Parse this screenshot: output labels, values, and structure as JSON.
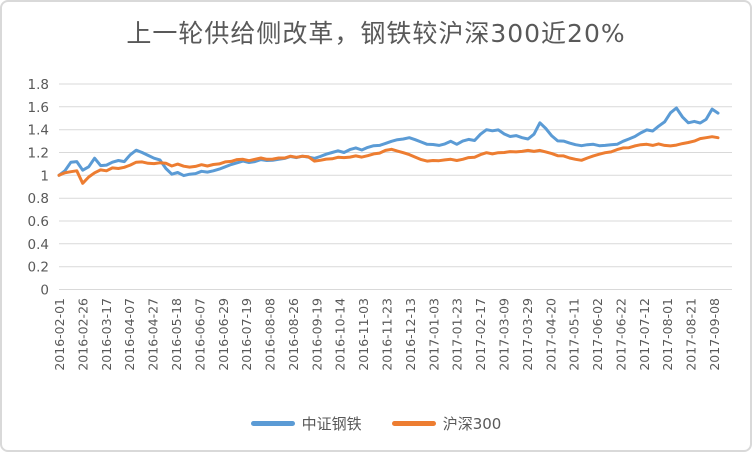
{
  "chart_data": {
    "type": "line",
    "title": "上一轮供给侧改革，钢铁较沪深300近20%",
    "xlabel": "",
    "ylabel": "",
    "ylim": [
      0,
      1.8
    ],
    "grid": true,
    "legend_position": "bottom",
    "colors": {
      "series_steel": "#5B9BD5",
      "series_hs300": "#ED7D31",
      "gridline": "#D9D9D9",
      "text": "#595959",
      "card_border": "#D9D9D9"
    },
    "y_ticks": [
      "1.8",
      "1.6",
      "1.4",
      "1.2",
      "1",
      "0.8",
      "0.6",
      "0.4",
      "0.2",
      "0"
    ],
    "x_tick_labels": [
      "2016-02-01",
      "2016-02-26",
      "2016-03-17",
      "2016-04-07",
      "2016-04-27",
      "2016-05-18",
      "2016-06-07",
      "2016-06-29",
      "2016-07-19",
      "2016-08-08",
      "2016-08-26",
      "2016-09-19",
      "2016-10-14",
      "2016-11-03",
      "2016-11-23",
      "2016-12-13",
      "2017-01-03",
      "2017-01-23",
      "2017-02-17",
      "2017-03-09",
      "2017-03-29",
      "2017-04-20",
      "2017-05-11",
      "2017-06-02",
      "2017-06-22",
      "2017-07-12",
      "2017-08-01",
      "2017-08-21",
      "2017-09-08"
    ],
    "series": [
      {
        "name": "中证钢铁",
        "color": "#5B9BD5",
        "values": [
          1.0,
          1.04,
          1.115,
          1.12,
          1.045,
          1.075,
          1.15,
          1.085,
          1.09,
          1.115,
          1.13,
          1.12,
          1.18,
          1.22,
          1.2,
          1.175,
          1.15,
          1.135,
          1.06,
          1.01,
          1.025,
          0.998,
          1.01,
          1.015,
          1.035,
          1.028,
          1.04,
          1.055,
          1.075,
          1.095,
          1.11,
          1.125,
          1.112,
          1.12,
          1.138,
          1.13,
          1.132,
          1.14,
          1.148,
          1.165,
          1.155,
          1.168,
          1.16,
          1.148,
          1.165,
          1.185,
          1.2,
          1.215,
          1.2,
          1.225,
          1.24,
          1.222,
          1.245,
          1.26,
          1.262,
          1.28,
          1.298,
          1.312,
          1.318,
          1.33,
          1.312,
          1.292,
          1.272,
          1.27,
          1.262,
          1.275,
          1.298,
          1.272,
          1.3,
          1.315,
          1.305,
          1.36,
          1.4,
          1.39,
          1.398,
          1.362,
          1.34,
          1.348,
          1.33,
          1.318,
          1.36,
          1.46,
          1.41,
          1.345,
          1.302,
          1.3,
          1.282,
          1.268,
          1.26,
          1.268,
          1.272,
          1.26,
          1.262,
          1.268,
          1.272,
          1.298,
          1.318,
          1.34,
          1.372,
          1.398,
          1.388,
          1.43,
          1.468,
          1.548,
          1.59,
          1.512,
          1.46,
          1.472,
          1.458,
          1.49,
          1.58,
          1.545
        ]
      },
      {
        "name": "沪深300",
        "color": "#ED7D31",
        "values": [
          1.0,
          1.022,
          1.032,
          1.04,
          0.93,
          0.985,
          1.022,
          1.048,
          1.04,
          1.065,
          1.06,
          1.07,
          1.09,
          1.115,
          1.118,
          1.105,
          1.103,
          1.11,
          1.105,
          1.082,
          1.098,
          1.08,
          1.072,
          1.078,
          1.093,
          1.082,
          1.095,
          1.1,
          1.118,
          1.122,
          1.138,
          1.14,
          1.128,
          1.14,
          1.152,
          1.14,
          1.142,
          1.152,
          1.152,
          1.168,
          1.158,
          1.168,
          1.162,
          1.125,
          1.132,
          1.142,
          1.145,
          1.158,
          1.155,
          1.16,
          1.17,
          1.16,
          1.172,
          1.188,
          1.195,
          1.218,
          1.228,
          1.212,
          1.198,
          1.182,
          1.16,
          1.138,
          1.125,
          1.13,
          1.128,
          1.135,
          1.14,
          1.13,
          1.14,
          1.155,
          1.158,
          1.182,
          1.198,
          1.188,
          1.198,
          1.2,
          1.208,
          1.205,
          1.21,
          1.218,
          1.21,
          1.218,
          1.205,
          1.19,
          1.172,
          1.17,
          1.152,
          1.14,
          1.132,
          1.152,
          1.17,
          1.185,
          1.198,
          1.205,
          1.225,
          1.24,
          1.242,
          1.258,
          1.268,
          1.272,
          1.262,
          1.275,
          1.262,
          1.258,
          1.265,
          1.278,
          1.288,
          1.3,
          1.322,
          1.33,
          1.338,
          1.33
        ]
      }
    ]
  }
}
